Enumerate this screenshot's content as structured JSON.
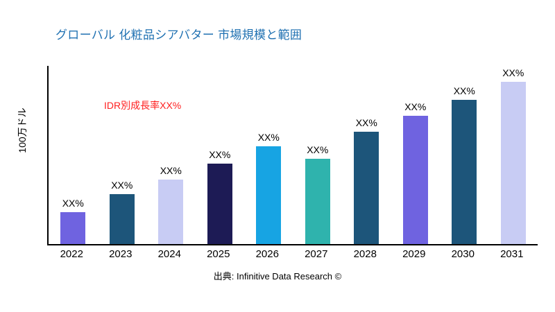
{
  "title": "グローバル 化粧品シアバター 市場規模と範囲",
  "source": "出典: Infinitive Data Research ©",
  "colors": {
    "title": "#2071b2",
    "annotation": "#ff1f1f",
    "axis": "#000000",
    "background": "#ffffff"
  },
  "chart_data": {
    "type": "bar",
    "title": "グローバル 化粧品シアバター 市場規模と範囲",
    "xlabel": "",
    "ylabel": "100万ドル",
    "categories": [
      "2022",
      "2023",
      "2024",
      "2025",
      "2026",
      "2027",
      "2028",
      "2029",
      "2030",
      "2031"
    ],
    "values": [
      18,
      28,
      36,
      45,
      55,
      48,
      63,
      72,
      81,
      91
    ],
    "bar_labels": [
      "XX%",
      "XX%",
      "XX%",
      "XX%",
      "XX%",
      "XX%",
      "XX%",
      "XX%",
      "XX%",
      "XX%"
    ],
    "bar_colors": [
      "#6f63e0",
      "#1d557a",
      "#c8ccf4",
      "#1d1b55",
      "#17a4e3",
      "#2fb3ad",
      "#1d557a",
      "#6f63e0",
      "#1d557a",
      "#c8ccf4"
    ],
    "ylim": [
      0,
      100
    ],
    "grid": false,
    "legend": "none",
    "annotation": {
      "text": "IDR別成長率XX%",
      "color": "#ff1f1f"
    }
  }
}
